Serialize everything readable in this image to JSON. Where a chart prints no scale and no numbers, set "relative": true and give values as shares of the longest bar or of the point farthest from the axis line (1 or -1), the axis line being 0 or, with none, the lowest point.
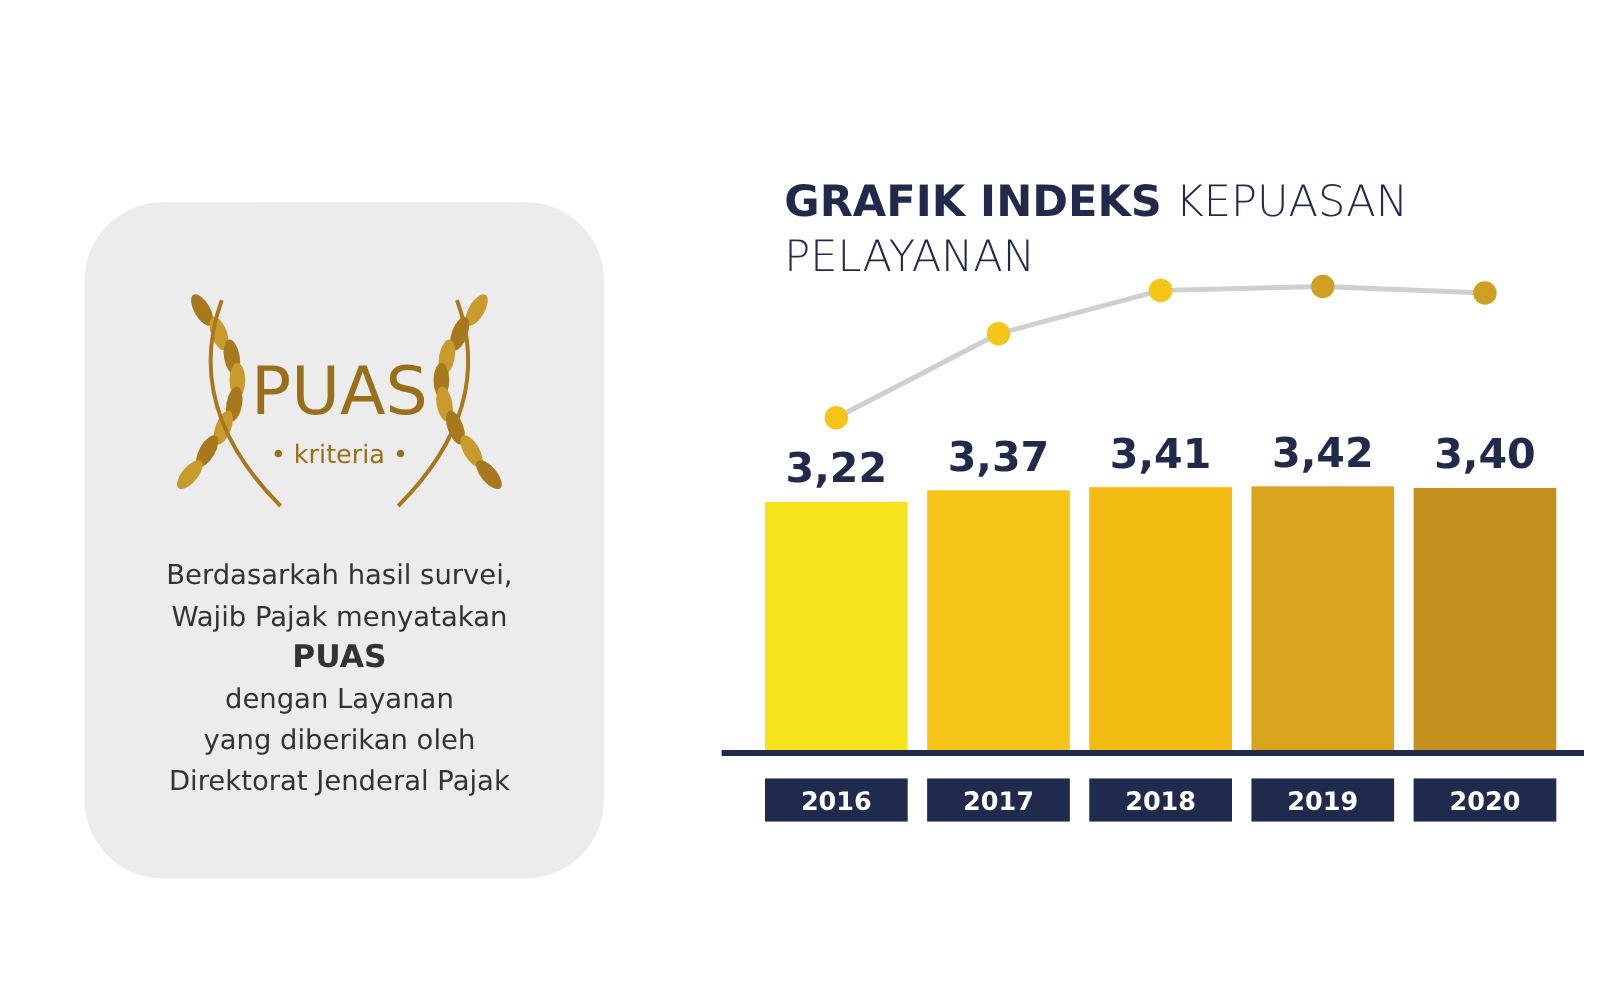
{
  "chart_data": [
    {
      "type": "other",
      "annotations": [
        "PUAS",
        "• kriteria •",
        "Berdasarkah hasil survei,",
        "Wajib Pajak menyatakan",
        "PUAS",
        "dengan Layanan",
        "yang diberikan oleh",
        "Direktorat Jenderal Pajak"
      ]
    },
    {
      "type": "bar",
      "title": "GRAFIK INDEKS KEPUASAN PELAYANAN",
      "categories": [
        "2016",
        "2017",
        "2018",
        "2019",
        "2020"
      ],
      "values": [
        3.22,
        3.37,
        3.41,
        3.42,
        3.4
      ],
      "value_labels": [
        "3,22",
        "3,37",
        "3,41",
        "3,42",
        "3,40"
      ],
      "colors": [
        "#f6e31c",
        "#f5c518",
        "#f2bc12",
        "#d9a51e",
        "#c4911f"
      ]
    },
    {
      "type": "line",
      "relative": true,
      "tick_labels": false,
      "marker": "circle",
      "categories": [
        "2016",
        "2017",
        "2018",
        "2019",
        "2020"
      ],
      "series": [
        {
          "color": "#cfcfcf",
          "colors": [
            "#f5c518",
            "#f5c518",
            "#f5c518",
            "#cf9f22",
            "#cf9f22"
          ],
          "values": [
            0,
            0.64,
            0.97,
            1,
            0.95
          ]
        }
      ]
    }
  ]
}
